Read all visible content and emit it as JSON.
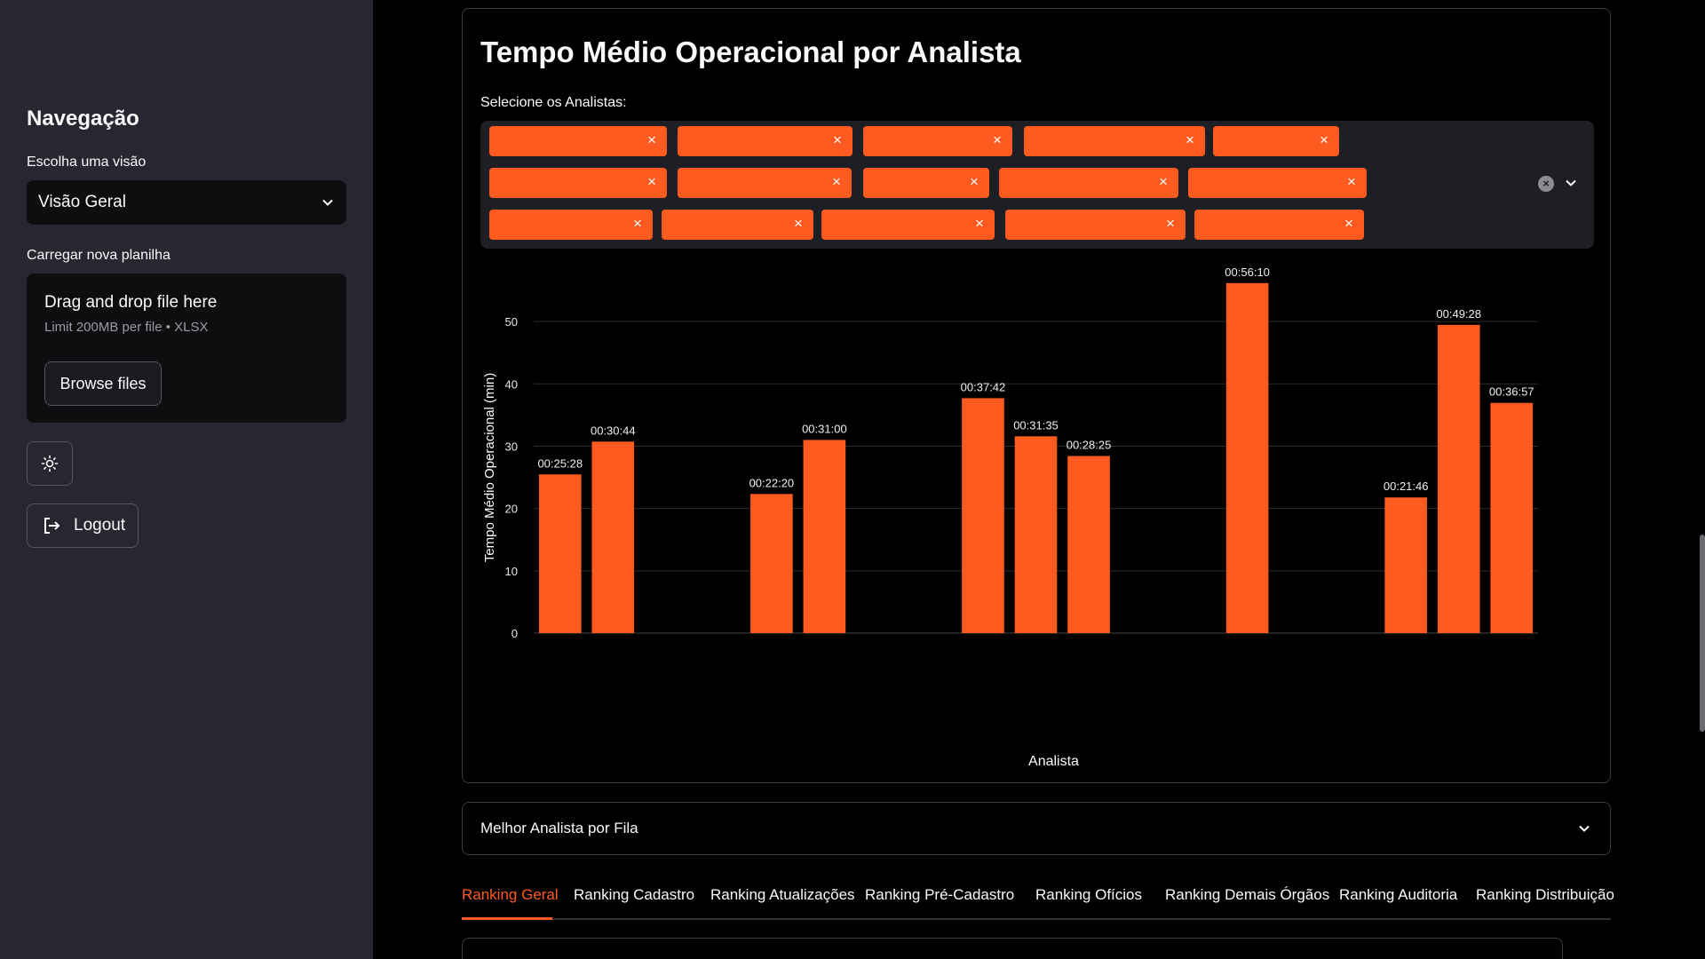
{
  "sidebar": {
    "title": "Navegação",
    "view_label": "Escolha uma visão",
    "view_selected": "Visão Geral",
    "upload_label": "Carregar nova planilha",
    "upload_title": "Drag and drop file here",
    "upload_hint": "Limit 200MB per file • XLSX",
    "browse_label": "Browse files",
    "logout_label": "Logout"
  },
  "panel": {
    "title": "Tempo Médio Operacional por Analista",
    "select_label": "Selecione os Analistas:"
  },
  "chart_data": {
    "type": "bar",
    "title": "",
    "xlabel": "Analista",
    "ylabel": "Tempo Médio Operacional (min)",
    "ylim": [
      0,
      56
    ],
    "yticks": [
      "0",
      "10",
      "20",
      "30",
      "40",
      "50"
    ],
    "ytick_values": [
      0,
      10,
      20,
      30,
      40,
      50
    ],
    "grid": true,
    "values": [
      25.47,
      30.73,
      0,
      0,
      22.33,
      31.0,
      0,
      0,
      37.7,
      31.58,
      28.42,
      0,
      0,
      56.17,
      0,
      0,
      21.77,
      49.47,
      36.95
    ],
    "labels": [
      "00:25:28",
      "00:30:44",
      "",
      "",
      "00:22:20",
      "00:31:00",
      "",
      "",
      "00:37:42",
      "00:31:35",
      "00:28:25",
      "",
      "",
      "00:56:10",
      "",
      "",
      "00:21:46",
      "00:49:28",
      "00:36:57"
    ],
    "bar_color": "#ff5a1f"
  },
  "expander": {
    "label": "Melhor Analista por Fila"
  },
  "tabs": [
    {
      "label": "Ranking Geral"
    },
    {
      "label": "Ranking Cadastro"
    },
    {
      "label": "Ranking Atualizações"
    },
    {
      "label": "Ranking Pré-Cadastro"
    },
    {
      "label": "Ranking Ofícios"
    },
    {
      "label": "Ranking Demais Órgãos"
    },
    {
      "label": "Ranking Auditoria"
    },
    {
      "label": "Ranking Distribuição"
    }
  ],
  "tag_remove_glyph": "×",
  "clear_glyph": "×",
  "accent": "#ff5a1f"
}
